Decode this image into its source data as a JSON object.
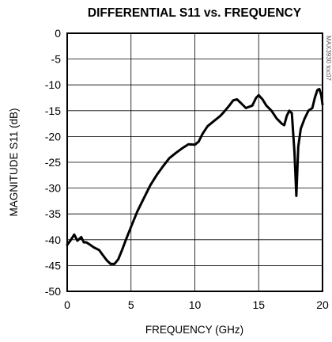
{
  "chart_data": {
    "type": "line",
    "title": "DIFFERENTIAL S11 vs. FREQUENCY",
    "xlabel": "FREQUENCY (GHz)",
    "ylabel": "MAGNITUDE S11 (dB)",
    "xlim": [
      0,
      20
    ],
    "ylim": [
      -50,
      0
    ],
    "x_ticks": [
      "0",
      "5",
      "10",
      "15",
      "20"
    ],
    "y_ticks": [
      "0",
      "-5",
      "-10",
      "-15",
      "-20",
      "-25",
      "-30",
      "-35",
      "-40",
      "-45",
      "-50"
    ],
    "grid": true,
    "watermark": "MAX3930 toc07",
    "series": [
      {
        "color": "#000000",
        "x": [
          0,
          0.3,
          0.55,
          0.8,
          1.1,
          1.3,
          1.5,
          1.8,
          2.1,
          2.5,
          2.8,
          3.1,
          3.4,
          3.7,
          4.0,
          4.3,
          4.6,
          5.0,
          5.5,
          6.0,
          6.5,
          7.0,
          7.5,
          8.0,
          8.5,
          9.0,
          9.5,
          10.0,
          10.3,
          10.6,
          11.0,
          11.5,
          12.0,
          12.3,
          12.7,
          13.0,
          13.3,
          13.6,
          14.0,
          14.5,
          14.8,
          15.0,
          15.3,
          15.6,
          16.0,
          16.4,
          16.8,
          17.0,
          17.2,
          17.4,
          17.6,
          17.8,
          17.95,
          18.1,
          18.3,
          18.6,
          18.9,
          19.2,
          19.4,
          19.6,
          19.75,
          19.9,
          20.0
        ],
        "y": [
          -41.0,
          -40.0,
          -39.0,
          -40.2,
          -39.5,
          -40.5,
          -40.5,
          -41.0,
          -41.5,
          -42.0,
          -43.0,
          -44.0,
          -44.7,
          -44.7,
          -43.8,
          -42.0,
          -40.0,
          -37.5,
          -34.5,
          -32.0,
          -29.5,
          -27.5,
          -25.8,
          -24.2,
          -23.2,
          -22.3,
          -21.5,
          -21.6,
          -21.0,
          -19.5,
          -18.0,
          -17.0,
          -16.0,
          -15.2,
          -14.0,
          -13.0,
          -12.8,
          -13.5,
          -14.5,
          -14.0,
          -12.5,
          -12.0,
          -12.8,
          -14.0,
          -15.0,
          -16.5,
          -17.5,
          -17.8,
          -16.0,
          -15.0,
          -15.5,
          -23.0,
          -31.5,
          -22.0,
          -18.5,
          -16.5,
          -15.0,
          -14.5,
          -12.5,
          -11.0,
          -10.8,
          -12.0,
          -13.8
        ]
      }
    ]
  }
}
